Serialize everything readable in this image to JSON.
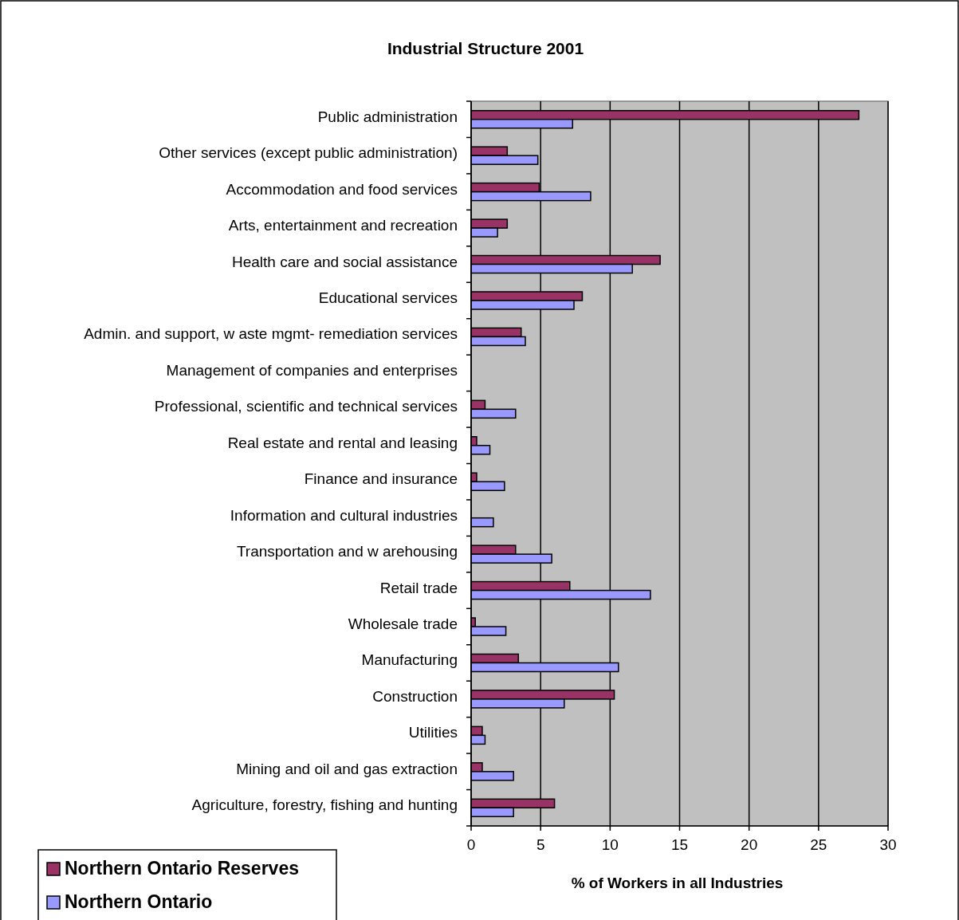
{
  "chart_data": {
    "type": "bar",
    "orientation": "horizontal",
    "title": "Industrial Structure 2001",
    "xlabel": "% of Workers in all Industries",
    "categories": [
      "Public administration",
      "Other services (except public administration)",
      "Accommodation and food services",
      "Arts, entertainment and recreation",
      "Health care and social assistance",
      "Educational services",
      "Admin. and support, w aste mgmt- remediation services",
      "Management of companies and enterprises",
      "Professional, scientific and technical services",
      "Real estate and rental and leasing",
      "Finance and insurance",
      "Information and cultural industries",
      "Transportation and w arehousing",
      "Retail trade",
      "Wholesale trade",
      "Manufacturing",
      "Construction",
      "Utilities",
      "Mining and oil and gas extraction",
      "Agriculture, forestry, fishing and hunting"
    ],
    "series": [
      {
        "name": "Northern Ontario Reserves",
        "color": "#993366",
        "values": [
          27.9,
          2.6,
          4.9,
          2.6,
          13.6,
          8.0,
          3.6,
          null,
          1.0,
          0.4,
          0.4,
          null,
          3.2,
          7.1,
          0.3,
          3.4,
          10.3,
          0.8,
          0.8,
          6.0
        ]
      },
      {
        "name": "Northern Ontario",
        "color": "#9999ff",
        "values": [
          7.3,
          4.8,
          8.6,
          1.9,
          11.6,
          7.4,
          3.9,
          null,
          3.2,
          1.35,
          2.4,
          1.6,
          5.8,
          12.9,
          2.5,
          10.6,
          6.7,
          1.0,
          3.05,
          3.05
        ]
      }
    ],
    "xlim": [
      0,
      30
    ],
    "xticks": [
      0,
      5,
      10,
      15,
      20,
      25,
      30
    ],
    "grid": "x",
    "legend": "bottom left"
  }
}
